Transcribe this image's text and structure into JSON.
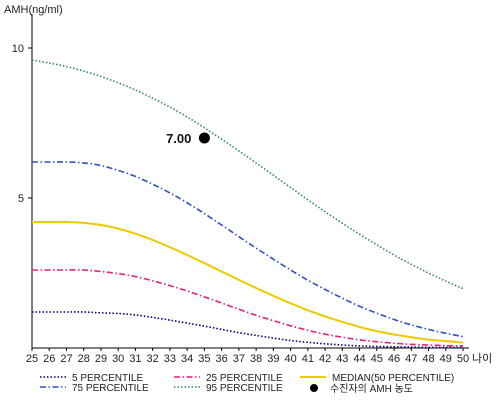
{
  "chart_data": {
    "type": "line",
    "ylabel": "AMH(ng/ml)",
    "xlabel": "나이",
    "xlim": [
      25,
      50
    ],
    "ylim": [
      0,
      11
    ],
    "x_ticks": [
      25,
      26,
      27,
      28,
      29,
      30,
      31,
      32,
      33,
      34,
      35,
      36,
      37,
      38,
      39,
      40,
      41,
      42,
      43,
      44,
      45,
      46,
      47,
      48,
      49,
      50
    ],
    "y_ticks": [
      5,
      10
    ],
    "x": [
      25,
      26,
      27,
      28,
      29,
      30,
      31,
      32,
      33,
      34,
      35,
      36,
      37,
      38,
      39,
      40,
      41,
      42,
      43,
      44,
      45,
      46,
      47,
      48,
      49,
      50
    ],
    "series": [
      {
        "name": "5 PERCENTILE",
        "color": "#000080",
        "dash": "dot",
        "values": [
          1.2,
          1.2,
          1.2,
          1.2,
          1.17,
          1.15,
          1.1,
          1.02,
          0.93,
          0.83,
          0.73,
          0.62,
          0.51,
          0.42,
          0.33,
          0.25,
          0.19,
          0.14,
          0.1,
          0.07,
          0.05,
          0.04,
          0.03,
          0.02,
          0.02,
          0.02
        ]
      },
      {
        "name": "25 PERCENTILE",
        "color": "#e0207a",
        "dash": "dashdot",
        "values": [
          2.6,
          2.6,
          2.6,
          2.6,
          2.55,
          2.48,
          2.38,
          2.24,
          2.08,
          1.9,
          1.7,
          1.5,
          1.29,
          1.09,
          0.91,
          0.74,
          0.59,
          0.46,
          0.36,
          0.27,
          0.21,
          0.16,
          0.12,
          0.1,
          0.08,
          0.07
        ]
      },
      {
        "name": "MEDIAN(50 PERCENTILE)",
        "color": "#f0c800",
        "dash": "solid",
        "values": [
          4.2,
          4.2,
          4.2,
          4.17,
          4.1,
          3.98,
          3.81,
          3.6,
          3.36,
          3.1,
          2.83,
          2.55,
          2.27,
          2.0,
          1.74,
          1.49,
          1.26,
          1.05,
          0.87,
          0.7,
          0.56,
          0.45,
          0.36,
          0.28,
          0.23,
          0.18
        ]
      },
      {
        "name": "75 PERCENTILE",
        "color": "#3050c0",
        "dash": "dashdot",
        "values": [
          6.2,
          6.2,
          6.2,
          6.17,
          6.08,
          5.92,
          5.72,
          5.46,
          5.17,
          4.84,
          4.48,
          4.1,
          3.71,
          3.33,
          2.96,
          2.6,
          2.26,
          1.95,
          1.66,
          1.39,
          1.16,
          0.95,
          0.77,
          0.62,
          0.49,
          0.38
        ]
      },
      {
        "name": "95 PERCENTILE",
        "color": "#2e8b57",
        "dash": "dot",
        "values": [
          9.6,
          9.5,
          9.38,
          9.23,
          9.05,
          8.84,
          8.6,
          8.33,
          8.03,
          7.7,
          7.34,
          6.96,
          6.57,
          6.17,
          5.76,
          5.35,
          4.94,
          4.54,
          4.16,
          3.79,
          3.44,
          3.1,
          2.79,
          2.5,
          2.23,
          1.98
        ]
      }
    ],
    "points": [
      {
        "name": "수진자의 AMH 농도",
        "x": 35,
        "y": 7.0,
        "label": "7.00",
        "color": "#000000"
      }
    ],
    "legend_position": "bottom",
    "grid": false
  }
}
